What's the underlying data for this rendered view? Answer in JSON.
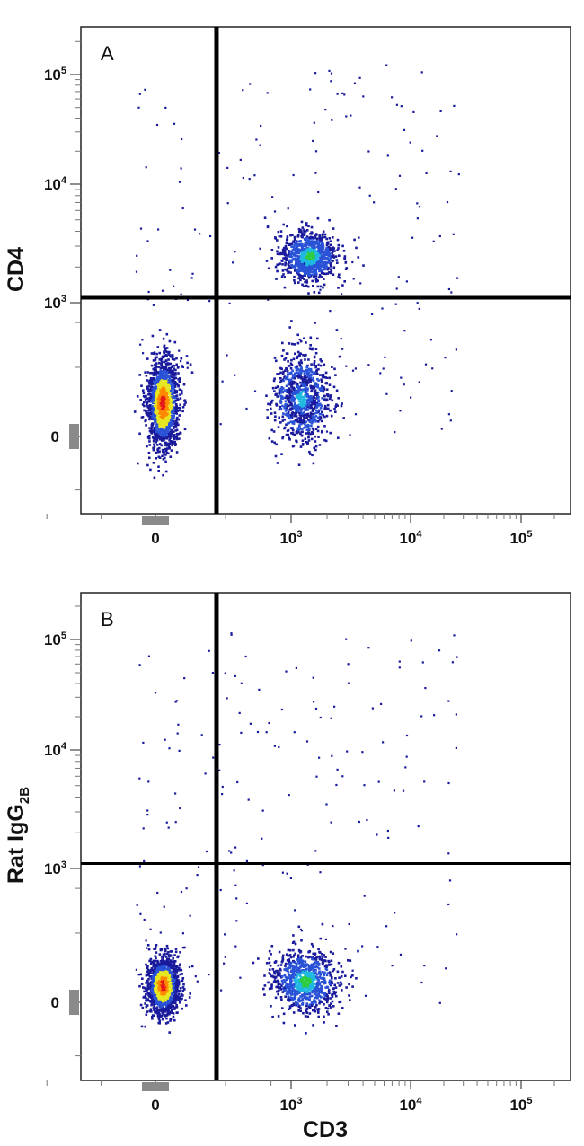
{
  "chart_data": [
    {
      "type": "scatter",
      "subtype": "flow-cytometry density dot plot",
      "panel_label": "A",
      "xlabel": "",
      "ylabel": "CD4",
      "x_ticks": [
        "0",
        "10^3",
        "10^4",
        "10^5"
      ],
      "y_ticks": [
        "0",
        "10^3",
        "10^4",
        "10^5"
      ],
      "scale": "biexponential (logicle)",
      "quadrant_gate": {
        "x": 330,
        "y": 1100
      },
      "populations": [
        {
          "name": "",
          "x_center": 15,
          "y_center": 150,
          "x_spread": 60,
          "y_spread": 300,
          "relative_density": "highest",
          "peak_color": "red"
        },
        {
          "name": "",
          "x_center": 1400,
          "y_center": 2500,
          "x_spread": 900,
          "y_spread": 900,
          "relative_density": "medium",
          "peak_color": "green"
        },
        {
          "name": "",
          "x_center": 1200,
          "y_center": 180,
          "x_spread": 800,
          "y_spread": 300,
          "relative_density": "medium",
          "peak_color": "cyan"
        }
      ],
      "density_colors": [
        "#1a1a9c",
        "#2a52d6",
        "#1fb8e0",
        "#2ecc40",
        "#e6e622",
        "#ff8a00",
        "#e61919"
      ]
    },
    {
      "type": "scatter",
      "subtype": "flow-cytometry density dot plot",
      "panel_label": "B",
      "xlabel": "CD3",
      "ylabel_main": "Rat IgG",
      "ylabel_sub": "2B",
      "x_ticks": [
        "0",
        "10^3",
        "10^4",
        "10^5"
      ],
      "y_ticks": [
        "0",
        "10^3",
        "10^4",
        "10^5"
      ],
      "scale": "biexponential (logicle)",
      "quadrant_gate": {
        "x": 330,
        "y": 1100
      },
      "populations": [
        {
          "name": "",
          "x_center": 15,
          "y_center": 60,
          "x_spread": 60,
          "y_spread": 150,
          "relative_density": "highest",
          "peak_color": "red"
        },
        {
          "name": "",
          "x_center": 1300,
          "y_center": 80,
          "x_spread": 1000,
          "y_spread": 180,
          "relative_density": "medium",
          "peak_color": "green"
        }
      ],
      "density_colors": [
        "#1a1a9c",
        "#2a52d6",
        "#1fb8e0",
        "#2ecc40",
        "#e6e622",
        "#ff8a00",
        "#e61919"
      ]
    }
  ]
}
